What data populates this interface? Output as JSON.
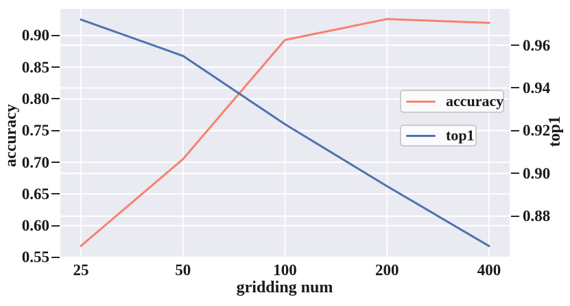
{
  "chart_data": {
    "type": "line",
    "title": "",
    "xlabel": "gridding num",
    "x_categories": [
      "25",
      "50",
      "100",
      "200",
      "400"
    ],
    "left_axis": {
      "label": "accuracy",
      "ticks": [
        0.55,
        0.6,
        0.65,
        0.7,
        0.75,
        0.8,
        0.85,
        0.9
      ],
      "ylim": [
        0.551,
        0.942
      ]
    },
    "right_axis": {
      "label": "top1",
      "ticks": [
        0.88,
        0.9,
        0.92,
        0.94,
        0.96
      ],
      "ylim": [
        0.861,
        0.977
      ]
    },
    "series": [
      {
        "name": "accuracy",
        "axis": "left",
        "color": "#f7816c",
        "values": [
          0.568,
          0.705,
          0.893,
          0.926,
          0.92
        ]
      },
      {
        "name": "top1",
        "axis": "right",
        "color": "#4c72b0",
        "values": [
          0.972,
          0.955,
          0.923,
          0.894,
          0.866
        ]
      }
    ],
    "grid": true,
    "legend": {
      "position": "center right",
      "entries": [
        "accuracy",
        "top1"
      ]
    },
    "colors": {
      "figure_bg": "#ffffff",
      "plot_bg": "#eaeaf2",
      "grid": "#ffffff",
      "text": "#1a1a1a",
      "tick": "#262626"
    }
  }
}
